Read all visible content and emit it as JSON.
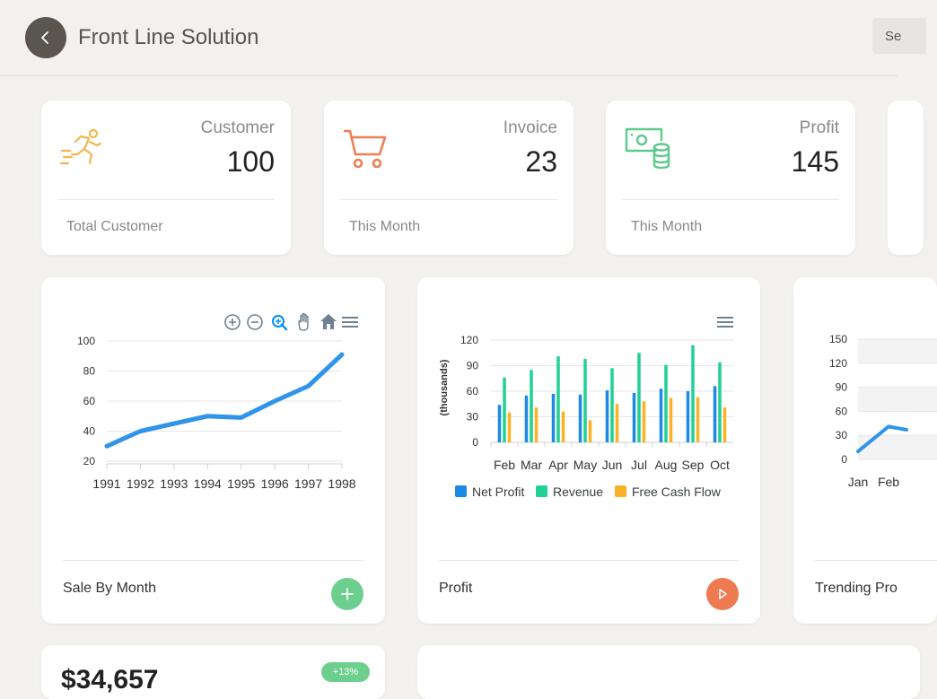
{
  "header": {
    "title": "Front Line Solution",
    "search_value": "Se"
  },
  "stats": [
    {
      "label": "Customer",
      "value": "100",
      "footer": "Total Customer",
      "icon": "running-person-icon",
      "color": "#f3b64e"
    },
    {
      "label": "Invoice",
      "value": "23",
      "footer": "This Month",
      "icon": "shopping-cart-icon",
      "color": "#ed7e55"
    },
    {
      "label": "Profit",
      "value": "145",
      "footer": "This Month",
      "icon": "money-coins-icon",
      "color": "#5dc98a"
    }
  ],
  "colors": {
    "line_blue": "#2f94ea",
    "net_profit": "#1e88e5",
    "revenue": "#1fd195",
    "free_cash_flow": "#fcb126",
    "fab_green": "#6ccf8e",
    "fab_orange": "#ed7a50"
  },
  "charts": {
    "sale_by_month": {
      "footer_label": "Sale By Month",
      "chart_data": {
        "type": "line",
        "x": [
          "1991",
          "1992",
          "1993",
          "1994",
          "1995",
          "1996",
          "1997",
          "1998"
        ],
        "values": [
          30,
          40,
          45,
          50,
          49,
          60,
          70,
          91
        ],
        "yticks": [
          "100",
          "80",
          "60",
          "40",
          "20"
        ],
        "ylim": [
          20,
          100
        ],
        "toolbar": [
          "zoom-in-icon",
          "zoom-out-icon",
          "magnifier-icon",
          "pan-hand-icon",
          "home-icon",
          "menu-icon"
        ]
      }
    },
    "profit": {
      "footer_label": "Profit",
      "chart_data": {
        "type": "bar",
        "categories": [
          "Feb",
          "Mar",
          "Apr",
          "May",
          "Jun",
          "Jul",
          "Aug",
          "Sep",
          "Oct"
        ],
        "ylabel": "(thousands)",
        "ylim": [
          0,
          120
        ],
        "yticks": [
          "120",
          "90",
          "60",
          "30",
          "0"
        ],
        "series": [
          {
            "name": "Net Profit",
            "values": [
              44,
              55,
              57,
              56,
              61,
              58,
              63,
              60,
              66
            ]
          },
          {
            "name": "Revenue",
            "values": [
              76,
              85,
              101,
              98,
              87,
              105,
              91,
              114,
              94
            ]
          },
          {
            "name": "Free Cash Flow",
            "values": [
              35,
              41,
              36,
              26,
              45,
              48,
              52,
              53,
              41
            ]
          }
        ]
      }
    },
    "trending": {
      "footer_label": "Trending Pro",
      "chart_data": {
        "type": "area",
        "x": [
          "Jan",
          "Feb"
        ],
        "values": [
          10,
          41
        ],
        "yticks": [
          "150",
          "120",
          "90",
          "60",
          "30",
          "0"
        ],
        "ylim": [
          0,
          150
        ]
      }
    }
  },
  "bottom": {
    "amount": "$34,657",
    "badge": "+13%"
  }
}
